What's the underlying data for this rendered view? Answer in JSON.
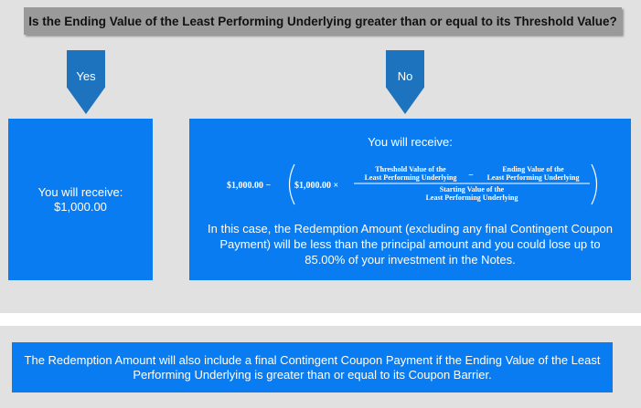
{
  "question": "Is the Ending Value of the Least Performing Underlying greater than or equal to its Threshold Value?",
  "branches": {
    "yes_label": "Yes",
    "no_label": "No"
  },
  "yes_box": {
    "line1": "You will receive:",
    "line2": "$1,000.00"
  },
  "no_box": {
    "heading": "You will receive:",
    "formula": {
      "principal": "$1,000.00 −",
      "inner_principal": "$1,000.00 ×",
      "threshold_line1": "Threshold Value of the",
      "threshold_line2": "Least Performing Underlying",
      "minus": "−",
      "ending_line1": "Ending Value of the",
      "ending_line2": "Least Performing Underlying",
      "starting_line1": "Starting Value of the",
      "starting_line2": "Least Performing Underlying"
    },
    "explanation": "In this case, the Redemption Amount (excluding any final Contingent Coupon Payment) will be less than the principal amount and you could lose up to 85.00% of your investment in the Notes."
  },
  "footer_note": "The Redemption Amount will also include a final Contingent Coupon Payment if the Ending Value of the Least Performing Underlying is greater than or equal to its Coupon Barrier.",
  "colors": {
    "panel_bg": "#e1e1e1",
    "question_bg": "#9a9a9a",
    "arrow": "#1e73be",
    "box": "#0a7cf2",
    "text_on_blue": "#ffffff"
  }
}
